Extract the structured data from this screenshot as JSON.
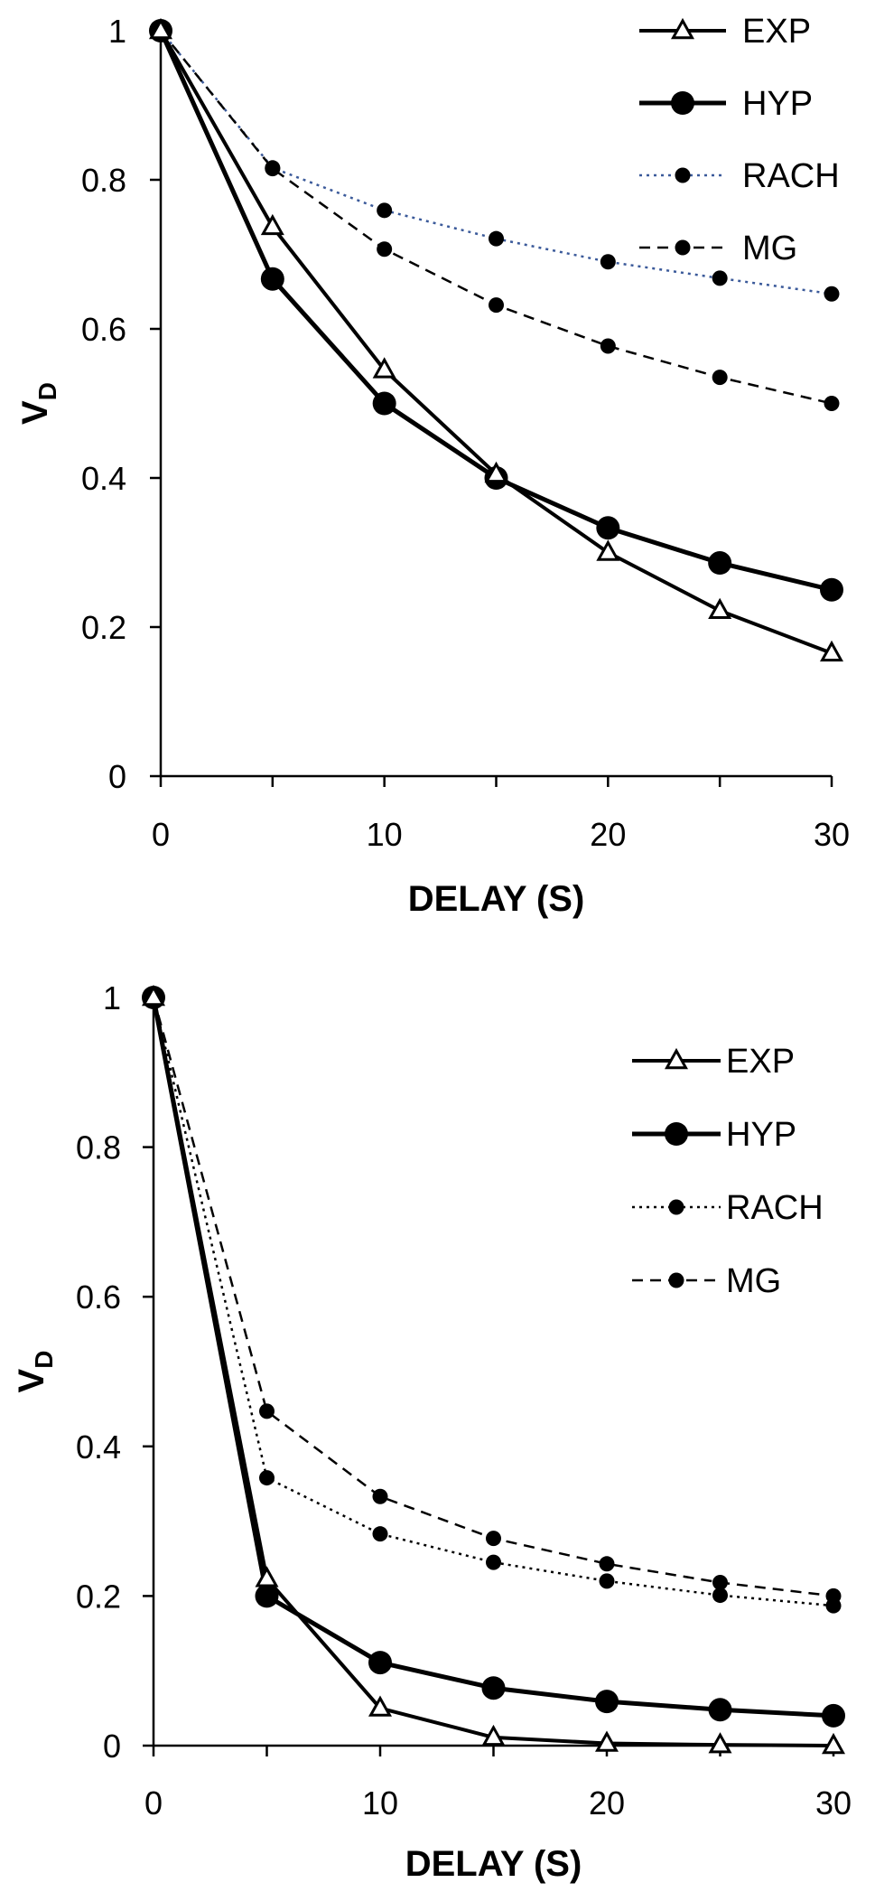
{
  "chart_data": [
    {
      "type": "line",
      "title": "",
      "xlabel": "DELAY (S)",
      "ylabel_main": "V",
      "ylabel_sub": "D",
      "xlim": [
        0,
        30
      ],
      "ylim": [
        0,
        1
      ],
      "xticks": [
        "0",
        "10",
        "20",
        "30"
      ],
      "yticks": [
        "0",
        "0.2",
        "0.4",
        "0.6",
        "0.8",
        "1"
      ],
      "grid": false,
      "legend_position": "top-right",
      "x": [
        0,
        5,
        10,
        15,
        20,
        25,
        30
      ],
      "series": [
        {
          "name": "EXP",
          "style": "exp",
          "values": [
            1,
            0.737,
            0.545,
            0.405,
            0.3,
            0.222,
            0.165
          ]
        },
        {
          "name": "HYP",
          "style": "hyp",
          "values": [
            1,
            0.667,
            0.5,
            0.4,
            0.333,
            0.286,
            0.25
          ]
        },
        {
          "name": "RACH",
          "style": "rach",
          "values": [
            1,
            0.816,
            0.759,
            0.721,
            0.69,
            0.668,
            0.647
          ]
        },
        {
          "name": "MG",
          "style": "mg",
          "values": [
            1,
            0.815,
            0.707,
            0.632,
            0.577,
            0.535,
            0.5
          ]
        }
      ]
    },
    {
      "type": "line",
      "title": "",
      "xlabel": "DELAY (S)",
      "ylabel_main": "V",
      "ylabel_sub": "D",
      "xlim": [
        0,
        30
      ],
      "ylim": [
        0,
        1
      ],
      "xticks": [
        "0",
        "10",
        "20",
        "30"
      ],
      "yticks": [
        "0",
        "0.2",
        "0.4",
        "0.6",
        "0.8",
        "1"
      ],
      "grid": false,
      "legend_position": "top-right",
      "x": [
        0,
        5,
        10,
        15,
        20,
        25,
        30
      ],
      "series": [
        {
          "name": "EXP",
          "style": "exp",
          "values": [
            1,
            0.223,
            0.05,
            0.011,
            0.003,
            0.001,
            0.0
          ]
        },
        {
          "name": "HYP",
          "style": "hyp",
          "values": [
            1,
            0.2,
            0.111,
            0.077,
            0.059,
            0.048,
            0.04
          ]
        },
        {
          "name": "RACH",
          "style": "rach",
          "values": [
            1,
            0.358,
            0.283,
            0.245,
            0.22,
            0.201,
            0.187
          ]
        },
        {
          "name": "MG",
          "style": "mg",
          "values": [
            1,
            0.447,
            0.333,
            0.277,
            0.243,
            0.218,
            0.2
          ]
        }
      ]
    }
  ]
}
